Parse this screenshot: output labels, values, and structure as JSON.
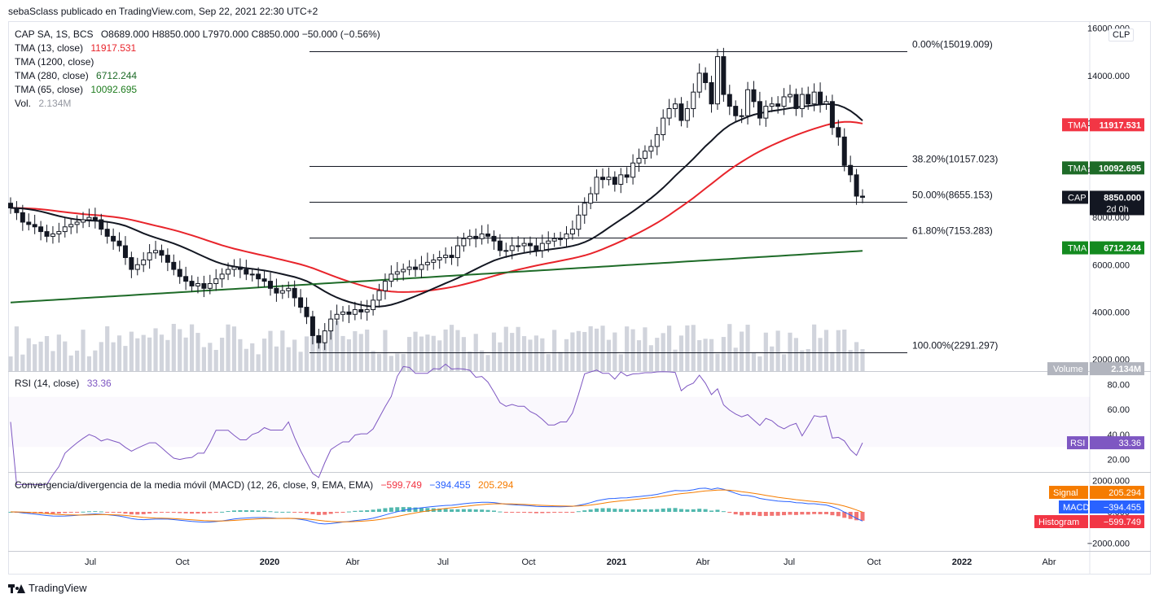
{
  "header": {
    "publisher_line": "sebaSclass publicado en TradingView.com, Sep 22, 2021 22:30 UTC+2"
  },
  "footer": {
    "brand": "TradingView"
  },
  "colors": {
    "up": "#ffffff",
    "down": "#131722",
    "tma13": "#e8242b",
    "tma1200": "#131722",
    "tma280": "#1e6b28",
    "tma65": "#1f7d1f",
    "volume": "#d1d4dc",
    "rsi": "#7e57c2",
    "macd": "#2962ff",
    "signal": "#f57c00",
    "hist_pos": "#26a69a",
    "hist_neg": "#ef5350"
  },
  "legend": {
    "symbol": "CAP SA, 1S, BCS",
    "ohlc": "O8689.000  H8850.000  L7970.000  C8850.000  −50.000  (−0.56%)",
    "ma": [
      {
        "label": "TMA (13, close)",
        "value": "11917.531",
        "color": "#e8242b"
      },
      {
        "label": "TMA (1200, close)",
        "value": "",
        "color": "#131722"
      },
      {
        "label": "TMA (280, close)",
        "value": "6712.244",
        "color": "#1e6b28"
      },
      {
        "label": "TMA (65, close)",
        "value": "10092.695",
        "color": "#1f7d1f"
      }
    ],
    "vol_label": "Vol.",
    "vol_value": "2.134M"
  },
  "clp_button": "CLP",
  "price_axis": {
    "ticks": [
      "16000.000",
      "14000.000",
      "12000.000",
      "10000.000",
      "8000.000",
      "6000.000",
      "4000.000",
      "2000.000"
    ]
  },
  "time_axis": {
    "ticks": [
      "Jul",
      "Oct",
      "2020",
      "Abr",
      "Jul",
      "Oct",
      "2021",
      "Abr",
      "Jul",
      "Oct",
      "2022",
      "Abr"
    ]
  },
  "fib_levels": [
    {
      "label": "0.00%(15019.009)",
      "price": 15019.009
    },
    {
      "label": "38.20%(10157.023)",
      "price": 10157.023
    },
    {
      "label": "50.00%(8655.153)",
      "price": 8655.153
    },
    {
      "label": "61.80%(7153.283)",
      "price": 7153.283
    },
    {
      "label": "100.00%(2291.297)",
      "price": 2291.297
    }
  ],
  "price_tags": [
    {
      "name": "TMA",
      "value": "11917.531",
      "price": 11917.531,
      "color": "#f23645"
    },
    {
      "name": "TMA",
      "value": "10092.695",
      "price": 10092.695,
      "color": "#1e6b28"
    },
    {
      "name": "CAP",
      "value": "8850.000",
      "sub": "2d 0h",
      "price": 8850,
      "color": "#131722"
    },
    {
      "name": "TMA",
      "value": "6712.244",
      "price": 6712.244,
      "color": "#138a1f"
    },
    {
      "name": "Volume",
      "value": "2.134M",
      "price": 1600,
      "color": "#b2b5be"
    }
  ],
  "rsi": {
    "title": "RSI (14, close)",
    "value": "33.36",
    "ticks": [
      "80.00",
      "60.00",
      "40.00",
      "20.00"
    ],
    "tag": "RSI",
    "tag_value": "33.36"
  },
  "macd": {
    "title": "Convergencia/divergencia de la media móvil (MACD) (12, 26, close, 9, EMA, EMA)",
    "hist_value": "−599.749",
    "macd_value": "−394.455",
    "signal_value": "205.294",
    "ticks": [
      "2000.000",
      "0.000",
      "−2000.000"
    ],
    "tags": [
      {
        "name": "Signal",
        "value": "205.294",
        "color": "#f57c00"
      },
      {
        "name": "MACD",
        "value": "−394.455",
        "color": "#2962ff"
      },
      {
        "name": "Histogram",
        "value": "−599.749",
        "color": "#f23645"
      }
    ]
  },
  "chart_data": {
    "type": "candlestick",
    "symbol": "CAP SA, 1S, BCS",
    "ylim": [
      1500,
      16300
    ],
    "fibonacci": [
      15019.009,
      10157.023,
      8655.153,
      7153.283,
      2291.297
    ],
    "closes": [
      8400,
      8200,
      7800,
      7700,
      7600,
      7400,
      7200,
      7300,
      7400,
      7600,
      7700,
      7800,
      7900,
      8000,
      7900,
      7500,
      7200,
      7000,
      6800,
      6300,
      5800,
      6000,
      6200,
      6500,
      6600,
      6400,
      6100,
      5800,
      5500,
      5300,
      5100,
      5200,
      5000,
      5200,
      5400,
      5600,
      5800,
      5900,
      5800,
      5600,
      5600,
      5400,
      5300,
      5000,
      4800,
      4900,
      5000,
      4600,
      4200,
      3800,
      3000,
      2700,
      3200,
      3700,
      3900,
      4000,
      3900,
      4100,
      4000,
      4100,
      4500,
      4900,
      5300,
      5600,
      5700,
      5800,
      5900,
      5800,
      6000,
      6100,
      6200,
      6300,
      6400,
      6300,
      6800,
      7100,
      7200,
      7100,
      7300,
      7200,
      7000,
      6600,
      6600,
      6800,
      6800,
      6900,
      6800,
      6600,
      6900,
      7000,
      7100,
      7100,
      7300,
      7500,
      8100,
      8600,
      9000,
      9700,
      9600,
      9700,
      9400,
      9800,
      9700,
      10300,
      10500,
      10800,
      11000,
      11500,
      12200,
      12600,
      12800,
      12100,
      12600,
      13300,
      14100,
      13700,
      12800,
      14800,
      13200,
      12700,
      12300,
      12300,
      13400,
      12900,
      12200,
      12700,
      12800,
      12700,
      13100,
      13200,
      12600,
      13200,
      12800,
      13300,
      12800,
      12900,
      11800,
      11400,
      10200,
      9800,
      8900,
      8850
    ],
    "volume_last": "2.134M",
    "moving_averages": [
      {
        "name": "TMA (13, close)",
        "last": 11917.531
      },
      {
        "name": "TMA (65, close)",
        "last": 10092.695
      },
      {
        "name": "TMA (280, close)",
        "last": 6712.244
      }
    ],
    "rsi_last": 33.36,
    "macd_last": {
      "macd": -394.455,
      "signal": 205.294,
      "histogram": -599.749
    },
    "time_labels": [
      "Jul",
      "Oct",
      "2020",
      "Abr",
      "Jul",
      "Oct",
      "2021",
      "Abr",
      "Jul",
      "Oct",
      "2022",
      "Abr"
    ]
  }
}
